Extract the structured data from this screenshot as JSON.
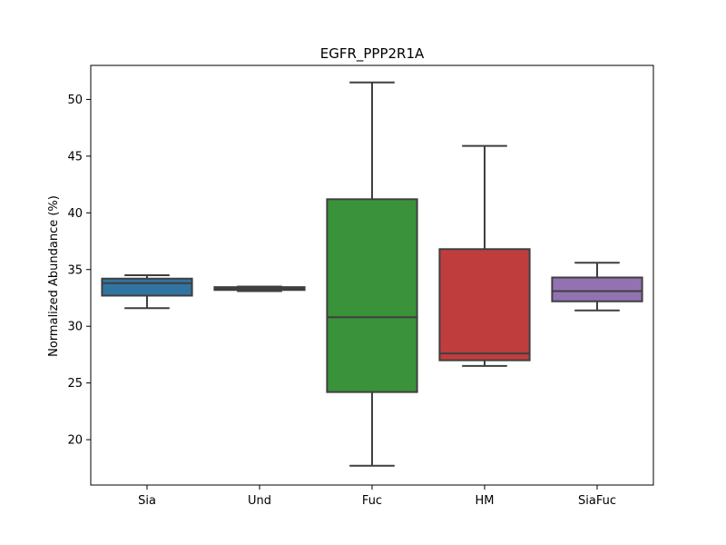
{
  "chart_data": {
    "type": "box",
    "title": "EGFR_PPP2R1A",
    "xlabel": "",
    "ylabel": "Normalized Abundance (%)",
    "ylim": [
      16.0,
      53.0
    ],
    "yticks": [
      20,
      25,
      30,
      35,
      40,
      45,
      50
    ],
    "grid": false,
    "categories": [
      "Sia",
      "Und",
      "Fuc",
      "HM",
      "SiaFuc"
    ],
    "boxes": [
      {
        "category": "Sia",
        "whisker_low": 31.6,
        "q1": 32.7,
        "median": 33.8,
        "q3": 34.2,
        "whisker_high": 34.5,
        "color": "#3274a1"
      },
      {
        "category": "Und",
        "whisker_low": 33.1,
        "q1": 33.2,
        "median": 33.3,
        "q3": 33.45,
        "whisker_high": 33.5,
        "color": "#e1812c"
      },
      {
        "category": "Fuc",
        "whisker_low": 17.7,
        "q1": 24.2,
        "median": 30.8,
        "q3": 41.2,
        "whisker_high": 51.5,
        "color": "#3a923a"
      },
      {
        "category": "HM",
        "whisker_low": 26.5,
        "q1": 27.0,
        "median": 27.6,
        "q3": 36.8,
        "whisker_high": 45.9,
        "color": "#c03d3e"
      },
      {
        "category": "SiaFuc",
        "whisker_low": 31.4,
        "q1": 32.2,
        "median": 33.1,
        "q3": 34.3,
        "whisker_high": 35.6,
        "color": "#9372b2"
      }
    ]
  }
}
